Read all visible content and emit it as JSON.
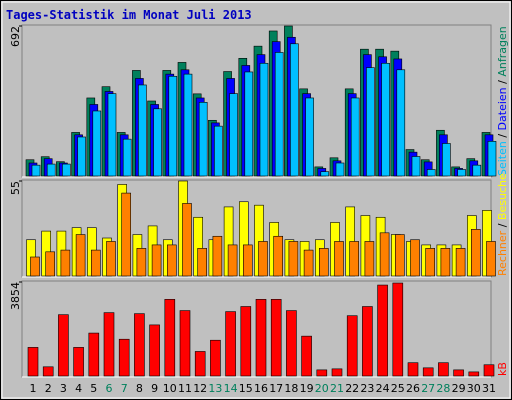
{
  "chart_data": [
    {
      "type": "bar",
      "title": "Tages-Statistik im Monat Juli 2013",
      "ylim": [
        0,
        692
      ],
      "yticks": [
        692
      ],
      "series": [
        {
          "name": "Anfragen",
          "color": "#00805c",
          "values": [
            75,
            89,
            66,
            201,
            360,
            412,
            201,
            487,
            346,
            487,
            524,
            379,
            257,
            482,
            543,
            599,
            669,
            692,
            402,
            42,
            84,
            402,
            585,
            585,
            576,
            122,
            75,
            211,
            42,
            80,
            201
          ]
        },
        {
          "name": "Dateien",
          "color": "#0000ff",
          "values": [
            60,
            80,
            60,
            190,
            330,
            390,
            190,
            450,
            330,
            470,
            490,
            360,
            245,
            450,
            510,
            560,
            620,
            640,
            380,
            35,
            70,
            380,
            560,
            550,
            540,
            110,
            65,
            190,
            35,
            70,
            190
          ]
        },
        {
          "name": "Seiten",
          "color": "#00c0ff",
          "values": [
            50,
            55,
            55,
            180,
            300,
            380,
            170,
            420,
            310,
            460,
            470,
            340,
            230,
            380,
            480,
            520,
            570,
            610,
            360,
            20,
            60,
            360,
            500,
            520,
            490,
            90,
            30,
            150,
            30,
            50,
            160
          ]
        }
      ]
    },
    {
      "type": "bar",
      "ylim": [
        0,
        55
      ],
      "yticks": [
        55
      ],
      "series": [
        {
          "name": "Besuche",
          "color": "#ffff00",
          "values": [
            21,
            26,
            26,
            28,
            28,
            22,
            53,
            24,
            29,
            21,
            55,
            34,
            21,
            40,
            43,
            41,
            31,
            21,
            20,
            21,
            31,
            40,
            35,
            34,
            24,
            20,
            18,
            18,
            18,
            35,
            38
          ]
        },
        {
          "name": "Rechner",
          "color": "#ff8000",
          "values": [
            11,
            14,
            15,
            24,
            15,
            20,
            48,
            16,
            18,
            18,
            42,
            16,
            23,
            18,
            18,
            20,
            23,
            20,
            15,
            16,
            20,
            20,
            20,
            25,
            24,
            21,
            16,
            16,
            16,
            27,
            20
          ]
        }
      ]
    },
    {
      "type": "bar",
      "ylim": [
        0,
        3854
      ],
      "yticks": [
        3854
      ],
      "categories": [
        "1",
        "2",
        "3",
        "4",
        "5",
        "6",
        "7",
        "8",
        "9",
        "10",
        "11",
        "12",
        "13",
        "14",
        "15",
        "16",
        "17",
        "18",
        "19",
        "20",
        "21",
        "22",
        "23",
        "24",
        "25",
        "26",
        "27",
        "28",
        "29",
        "30",
        "31"
      ],
      "category_colors": [
        "#000000",
        "#000000",
        "#000000",
        "#000000",
        "#000000",
        "#00805c",
        "#00805c",
        "#000000",
        "#000000",
        "#000000",
        "#000000",
        "#000000",
        "#00805c",
        "#00805c",
        "#000000",
        "#000000",
        "#000000",
        "#000000",
        "#000000",
        "#00805c",
        "#00805c",
        "#000000",
        "#000000",
        "#000000",
        "#000000",
        "#000000",
        "#00805c",
        "#00805c",
        "#000000",
        "#000000",
        "#000000"
      ],
      "series": [
        {
          "name": "kB",
          "color": "#ff0000",
          "values": [
            1173,
            377,
            2514,
            1173,
            1760,
            2598,
            1508,
            2556,
            2095,
            3143,
            2682,
            1006,
            1467,
            2640,
            2849,
            3143,
            3143,
            2682,
            1634,
            251,
            293,
            2472,
            2849,
            3729,
            3812,
            545,
            335,
            545,
            251,
            168,
            461
          ]
        }
      ]
    }
  ]
}
